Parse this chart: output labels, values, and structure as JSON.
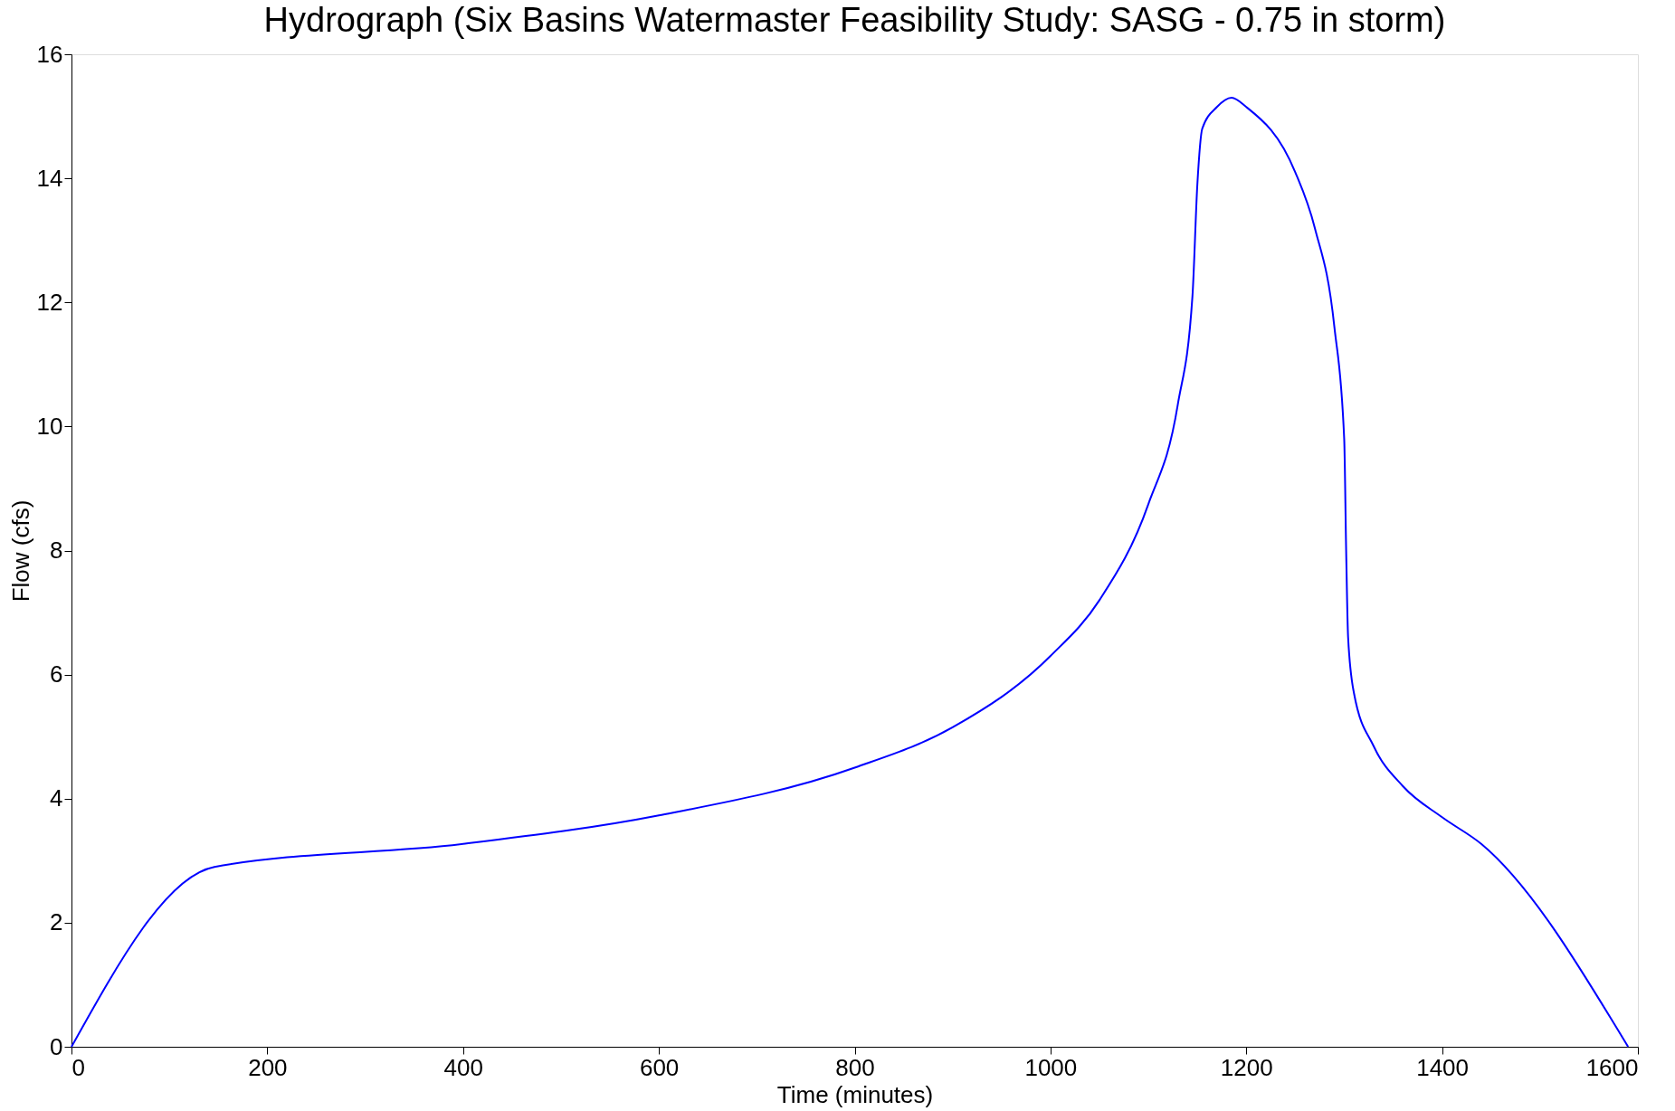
{
  "chart_data": {
    "type": "line",
    "title": "Hydrograph (Six Basins Watermaster Feasibility Study: SASG - 0.75 in storm)",
    "xlabel": "Time (minutes)",
    "ylabel": "Flow (cfs)",
    "x": [
      0,
      146,
      400,
      600,
      800,
      900,
      1000,
      1050,
      1100,
      1130,
      1145,
      1150,
      1155,
      1170,
      1185,
      1200,
      1250,
      1270,
      1290,
      1300,
      1302,
      1304,
      1310,
      1330,
      1360,
      1400,
      1440,
      1590
    ],
    "series": [
      {
        "color": "#0000ff",
        "values": [
          0,
          2.9,
          3.27,
          3.73,
          4.5,
          5.15,
          6.3,
          7.2,
          8.75,
          10.35,
          12.1,
          13.9,
          14.8,
          15.15,
          15.3,
          15.15,
          14.1,
          13.2,
          11.6,
          9.8,
          8.0,
          6.6,
          5.7,
          4.85,
          4.2,
          3.7,
          3.27,
          0
        ]
      }
    ],
    "xlim": [
      0,
      1600
    ],
    "xticks": [
      0,
      200,
      400,
      600,
      800,
      1000,
      1200,
      1400,
      1600
    ],
    "ylim": [
      0,
      16
    ],
    "yticks": [
      0,
      2,
      4,
      6,
      8,
      10,
      12,
      14,
      16
    ],
    "grid": false,
    "marker": "none",
    "line_style": "solid"
  }
}
